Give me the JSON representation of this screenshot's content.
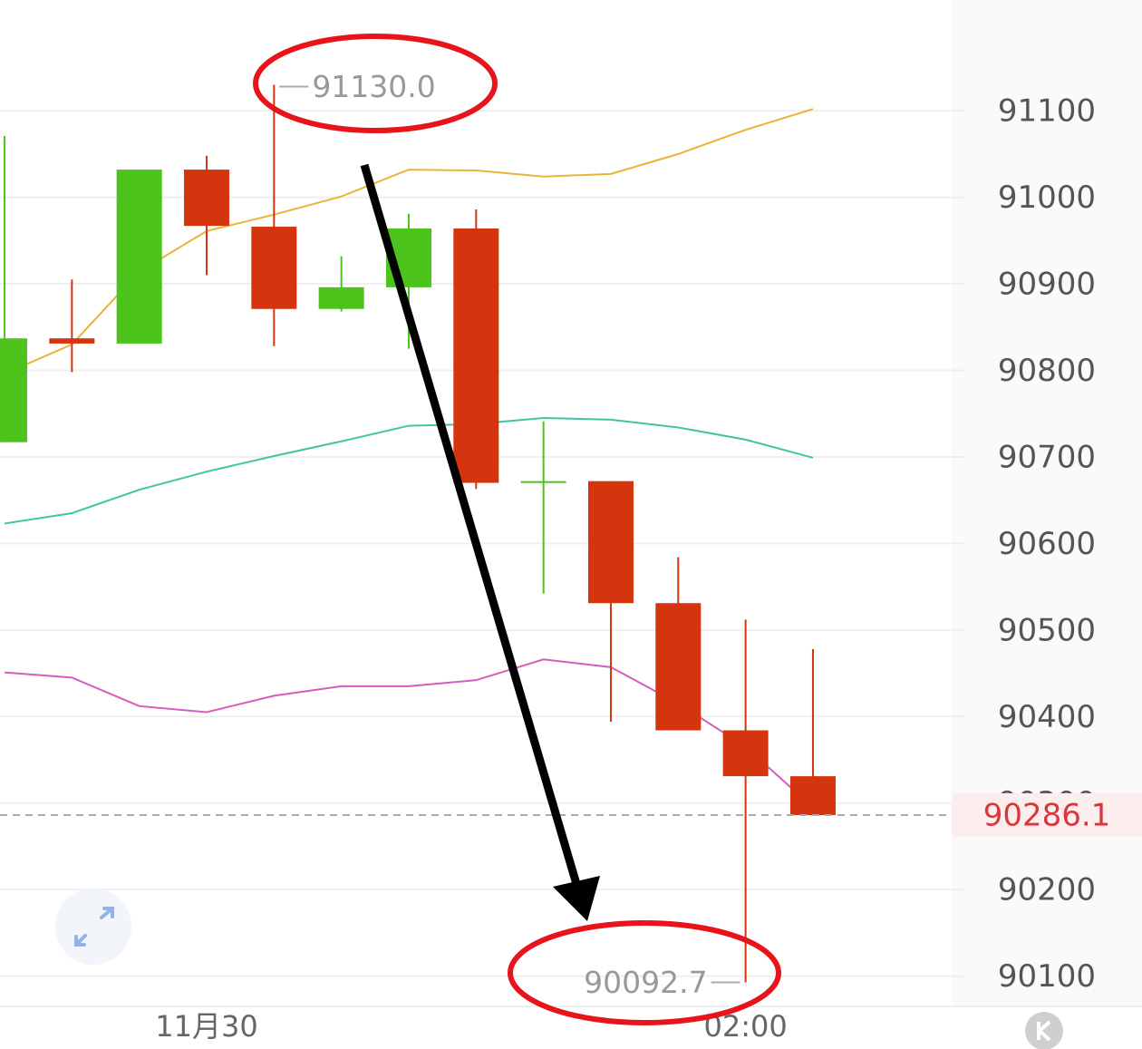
{
  "chart_data": {
    "type": "candlestick",
    "categories": [
      null,
      null,
      null,
      "11月30",
      null,
      null,
      null,
      null,
      null,
      null,
      null,
      "02:00",
      null
    ],
    "open": [
      90717,
      90837,
      90831,
      91032,
      90966,
      90871,
      90896,
      90964,
      90671,
      90672,
      90531,
      90384,
      90331
    ],
    "high": [
      91071,
      90905,
      91032,
      91048,
      91130.0,
      90932,
      90981,
      90986,
      90741,
      90672,
      90584,
      90512,
      90478
    ],
    "low": [
      90717,
      90798,
      90831,
      90910,
      90828,
      90868,
      90825,
      90663,
      90542,
      90394,
      90384,
      90092.7,
      90285
    ],
    "close": [
      90837,
      90831,
      91032,
      90967,
      90871,
      90896,
      90964,
      90670,
      90672,
      90531,
      90384,
      90331,
      90286.1
    ],
    "high_labels": [
      null,
      null,
      null,
      null,
      "91130.0",
      null,
      null,
      null,
      null,
      null,
      null,
      null,
      null
    ],
    "low_labels": [
      null,
      null,
      null,
      null,
      null,
      null,
      null,
      null,
      null,
      null,
      null,
      "90092.7",
      null
    ],
    "up_color": "#4cc41c",
    "down_color": "#d4350f",
    "series": [
      {
        "color": "#e8b43a",
        "values": [
          90796,
          90830,
          90914,
          90961,
          90980,
          91001,
          91032,
          91031,
          91024,
          91027,
          91050,
          91078,
          91102
        ]
      },
      {
        "color": "#3fc4a6",
        "values": [
          90623,
          90635,
          90662,
          90683,
          90701,
          90718,
          90736,
          90738,
          90745,
          90743,
          90734,
          90720,
          90699
        ]
      },
      {
        "color": "#d85bbd",
        "values": [
          90451,
          90445,
          90412,
          90405,
          90424,
          90435,
          90435,
          90442,
          90466,
          90457,
          90415,
          90365,
          90295
        ]
      }
    ],
    "last_price": 90286.1,
    "ylim": [
      90065,
      91228
    ],
    "yticks": [
      90100,
      90200,
      90300,
      90400,
      90500,
      90600,
      90700,
      90800,
      90900,
      91000,
      91100
    ],
    "grid": true
  }
}
